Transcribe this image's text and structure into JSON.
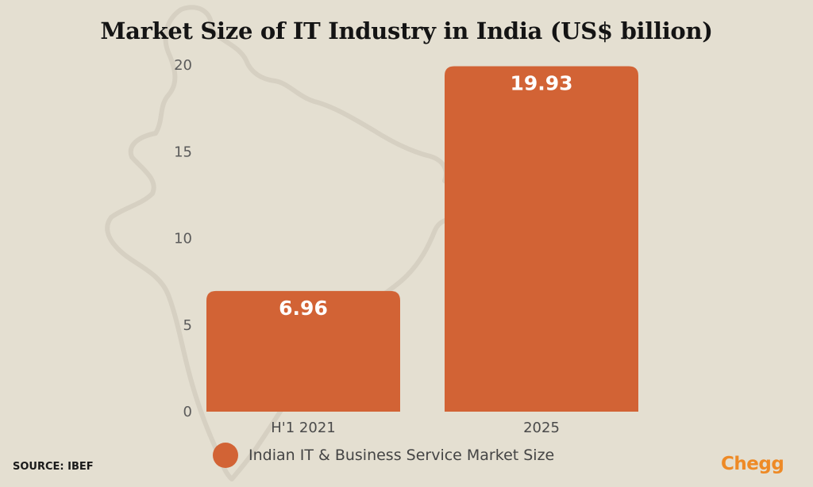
{
  "chart_data": {
    "type": "bar",
    "title": "Market Size of IT Industry in India (US$ billion)",
    "categories": [
      "H'1  2021",
      "2025"
    ],
    "series": [
      {
        "name": "Indian IT & Business Service Market Size",
        "values": [
          6.96,
          19.93
        ]
      }
    ],
    "data_labels": [
      "6.96",
      "19.93"
    ],
    "ylim": [
      0,
      20
    ],
    "yticks": [
      0,
      5,
      10,
      15,
      20
    ],
    "xlabel": "",
    "ylabel": "",
    "grid": false,
    "legend_position": "bottom",
    "bar_color": "#d26335"
  },
  "source": "SOURCE: IBEF",
  "brand": "Chegg",
  "colors": {
    "background": "#e4dfd1",
    "map_outline": "#d6d0c2",
    "brand": "#ee8a26"
  }
}
